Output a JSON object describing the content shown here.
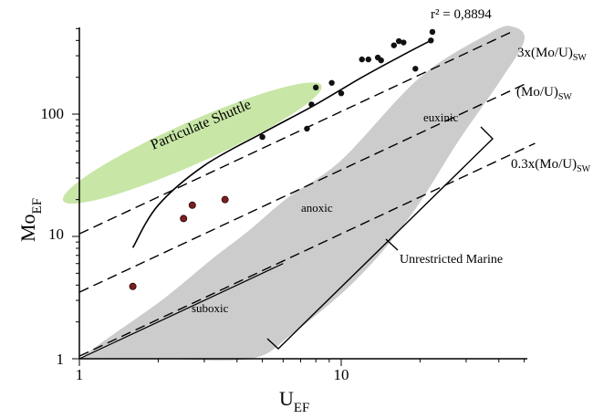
{
  "chart_data": {
    "type": "scatter",
    "xlabel": "U",
    "xlabel_sub": "EF",
    "ylabel": "Mo",
    "ylabel_sub": "EF",
    "x_scale": "log",
    "y_scale": "log",
    "xlim": [
      1,
      60
    ],
    "ylim": [
      1,
      700
    ],
    "x_ticks": [
      1,
      10
    ],
    "x_tick_labels": [
      "1",
      "10"
    ],
    "y_ticks": [
      1,
      10,
      100
    ],
    "y_tick_labels": [
      "1",
      "10",
      "100"
    ],
    "grid": false,
    "colors": {
      "black_points": "#111111",
      "red_points": "#7a1f1f",
      "particulate_region": "#c8e6a6",
      "redox_region": "#cccccc",
      "lines": "#000000"
    },
    "series": [
      {
        "marker": "black-dot",
        "points": [
          [
            5.0,
            65
          ],
          [
            7.4,
            76
          ],
          [
            7.7,
            120
          ],
          [
            8.0,
            165
          ],
          [
            9.2,
            180
          ],
          [
            10.0,
            148
          ],
          [
            12.0,
            280
          ],
          [
            12.7,
            280
          ],
          [
            13.8,
            290
          ],
          [
            14.2,
            275
          ],
          [
            15.9,
            365
          ],
          [
            16.6,
            395
          ],
          [
            17.3,
            385
          ],
          [
            19.2,
            235
          ],
          [
            22.0,
            400
          ],
          [
            22.3,
            470
          ]
        ]
      },
      {
        "marker": "red-dot",
        "points": [
          [
            1.6,
            3.9
          ],
          [
            2.5,
            14
          ],
          [
            2.7,
            18
          ],
          [
            3.6,
            20
          ]
        ]
      }
    ],
    "fit_curve": {
      "r2_label": "r² = 0,8894",
      "points": [
        [
          1.6,
          8.1
        ],
        [
          2.0,
          18
        ],
        [
          3.0,
          38
        ],
        [
          5.0,
          70
        ],
        [
          8.0,
          120
        ],
        [
          12.0,
          200
        ],
        [
          17.0,
          300
        ],
        [
          22.5,
          410
        ]
      ]
    },
    "reference_lines": [
      {
        "label": "3x(Mo/U)",
        "label_sub": "SW",
        "slope_factor": 10.5
      },
      {
        "label": "(Mo/U)",
        "label_sub": "SW",
        "slope_factor": 3.5
      },
      {
        "label": "0.3x(Mo/U)",
        "label_sub": "SW",
        "slope_factor": 1.05
      }
    ],
    "regions": {
      "particulate_shuttle": {
        "label": "Particulate Shuttle",
        "center": [
          2.7,
          58
        ],
        "x_radius_decades": 0.54,
        "y_radius_decades": 0.17,
        "rotation_deg": 24
      },
      "redox_field": {
        "labels": [
          "euxinic",
          "anoxic",
          "suboxic"
        ],
        "outline": [
          [
            1.0,
            1.0
          ],
          [
            2.0,
            1.0
          ],
          [
            4.5,
            1.0
          ],
          [
            6.5,
            1.6
          ],
          [
            11.5,
            4.5
          ],
          [
            18.5,
            15
          ],
          [
            28,
            60
          ],
          [
            40,
            180
          ],
          [
            50,
            400
          ],
          [
            45,
            520
          ],
          [
            37,
            460
          ],
          [
            20,
            200
          ],
          [
            10,
            42
          ],
          [
            6.3,
            21
          ],
          [
            4.4,
            11
          ],
          [
            3.2,
            6.5
          ],
          [
            2.1,
            3.1
          ],
          [
            1.3,
            1.5
          ],
          [
            1.0,
            1.0
          ]
        ]
      }
    },
    "annotations": {
      "euxinic": "euxinic",
      "anoxic": "anoxic",
      "suboxic": "suboxic",
      "unrestricted_marine": "Unrestricted Marine"
    }
  }
}
